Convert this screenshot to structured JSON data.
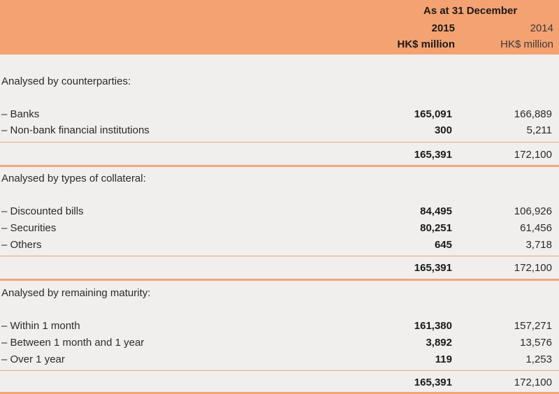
{
  "header": {
    "period": "As at 31 December",
    "col1_year": "2015",
    "col1_unit": "HK$ million",
    "col2_year": "2014",
    "col2_unit": "HK$ million"
  },
  "sections": [
    {
      "title": "Analysed by counterparties:",
      "rows": [
        {
          "label": "– Banks",
          "v2015": "165,091",
          "v2014": "166,889"
        },
        {
          "label": "– Non-bank financial institutions",
          "v2015": "300",
          "v2014": "5,211"
        }
      ],
      "total": {
        "v2015": "165,391",
        "v2014": "172,100"
      }
    },
    {
      "title": "Analysed by types of collateral:",
      "rows": [
        {
          "label": "– Discounted bills",
          "v2015": "84,495",
          "v2014": "106,926"
        },
        {
          "label": "– Securities",
          "v2015": "80,251",
          "v2014": "61,456"
        },
        {
          "label": "– Others",
          "v2015": "645",
          "v2014": "3,718"
        }
      ],
      "total": {
        "v2015": "165,391",
        "v2014": "172,100"
      }
    },
    {
      "title": "Analysed by remaining maturity:",
      "rows": [
        {
          "label": "– Within 1 month",
          "v2015": "161,380",
          "v2014": "157,271"
        },
        {
          "label": "– Between 1 month and 1 year",
          "v2015": "3,892",
          "v2014": "13,576"
        },
        {
          "label": "– Over 1 year",
          "v2015": "119",
          "v2014": "1,253"
        }
      ],
      "total": {
        "v2015": "165,391",
        "v2014": "172,100"
      }
    }
  ]
}
